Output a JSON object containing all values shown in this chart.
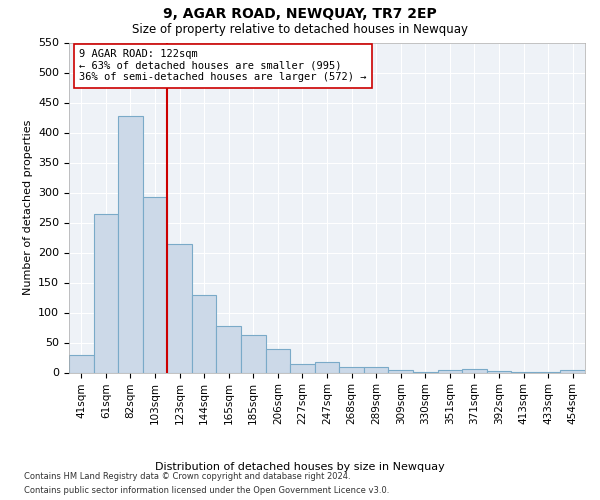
{
  "title": "9, AGAR ROAD, NEWQUAY, TR7 2EP",
  "subtitle": "Size of property relative to detached houses in Newquay",
  "xlabel": "Distribution of detached houses by size in Newquay",
  "ylabel": "Number of detached properties",
  "categories": [
    "41sqm",
    "61sqm",
    "82sqm",
    "103sqm",
    "123sqm",
    "144sqm",
    "165sqm",
    "185sqm",
    "206sqm",
    "227sqm",
    "247sqm",
    "268sqm",
    "289sqm",
    "309sqm",
    "330sqm",
    "351sqm",
    "371sqm",
    "392sqm",
    "413sqm",
    "433sqm",
    "454sqm"
  ],
  "values": [
    30,
    265,
    428,
    292,
    215,
    130,
    77,
    62,
    40,
    15,
    17,
    10,
    10,
    5,
    1,
    5,
    6,
    3,
    1,
    1,
    5
  ],
  "bar_color": "#ccd9e8",
  "bar_edge_color": "#7aaac8",
  "marker_label_line1": "9 AGAR ROAD: 122sqm",
  "marker_label_line2": "← 63% of detached houses are smaller (995)",
  "marker_label_line3": "36% of semi-detached houses are larger (572) →",
  "marker_color": "#cc0000",
  "ylim": [
    0,
    550
  ],
  "yticks": [
    0,
    50,
    100,
    150,
    200,
    250,
    300,
    350,
    400,
    450,
    500,
    550
  ],
  "background_color": "#eef2f7",
  "grid_color": "#ffffff",
  "footer_line1": "Contains HM Land Registry data © Crown copyright and database right 2024.",
  "footer_line2": "Contains public sector information licensed under the Open Government Licence v3.0."
}
